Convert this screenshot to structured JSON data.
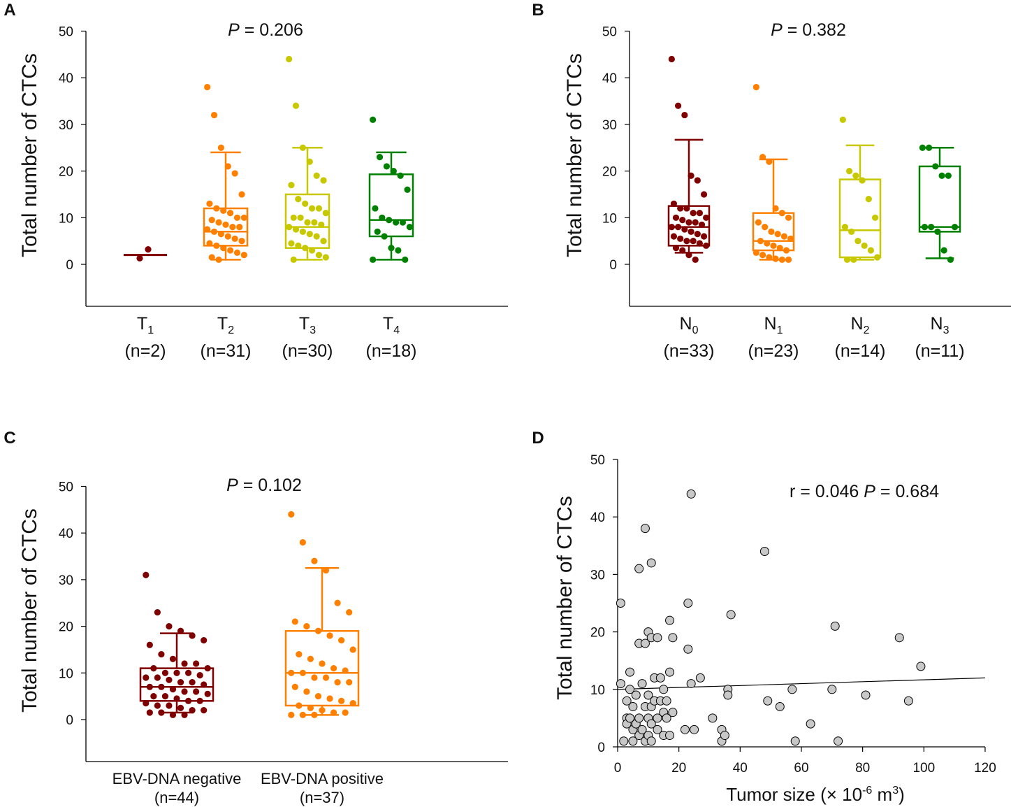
{
  "chart_data": [
    {
      "panel": "A",
      "type": "box",
      "ylabel": "Total number of CTCs",
      "ylim": [
        -10,
        50
      ],
      "yticks": [
        0,
        10,
        20,
        30,
        40,
        50
      ],
      "annotation": {
        "italic": "P",
        "text": " = 0.206"
      },
      "categories": [
        {
          "name": "T",
          "sub": "1",
          "n": "(n=2)",
          "color": "#7f0000",
          "q1": 2,
          "median": 2,
          "q3": 2,
          "whisker_low": 2,
          "whisker_high": 2,
          "points": [
            1.3,
            3.2
          ]
        },
        {
          "name": "T",
          "sub": "2",
          "n": "(n=31)",
          "color": "#ff8000",
          "q1": 4,
          "median": 7,
          "q3": 12,
          "whisker_low": 1,
          "whisker_high": 24,
          "points": [
            38,
            32,
            25,
            21,
            19.5,
            15,
            13,
            12,
            11.5,
            11,
            10,
            10,
            9.5,
            9,
            8.5,
            8,
            8,
            7.5,
            7,
            6.5,
            6,
            5.5,
            5,
            4.5,
            4,
            3.5,
            3,
            2.5,
            2,
            1.5,
            1
          ]
        },
        {
          "name": "T",
          "sub": "3",
          "n": "(n=30)",
          "color": "#c8c800",
          "q1": 3.5,
          "median": 8,
          "q3": 15,
          "whisker_low": 1,
          "whisker_high": 25,
          "points": [
            44,
            34,
            25,
            22,
            19,
            18,
            17,
            14,
            13,
            12,
            12,
            11,
            10,
            10,
            9,
            9,
            8.5,
            8,
            7.5,
            7,
            6.5,
            6,
            5,
            4.5,
            4,
            3.5,
            3,
            2,
            1.5,
            1
          ]
        },
        {
          "name": "T",
          "sub": "4",
          "n": "(n=18)",
          "color": "#008000",
          "q1": 6,
          "median": 9.5,
          "q3": 19.3,
          "whisker_low": 1,
          "whisker_high": 24,
          "points": [
            31,
            23,
            21,
            20,
            19,
            16,
            12,
            10,
            9.5,
            9,
            9,
            8,
            7,
            6,
            3.5,
            3,
            1,
            1
          ]
        }
      ]
    },
    {
      "panel": "B",
      "type": "box",
      "ylabel": "Total number of CTCs",
      "ylim": [
        -10,
        50
      ],
      "yticks": [
        0,
        10,
        20,
        30,
        40,
        50
      ],
      "annotation": {
        "italic": "P",
        "text": " = 0.382"
      },
      "categories": [
        {
          "name": "N",
          "sub": "0",
          "n": "(n=33)",
          "color": "#7f0000",
          "q1": 4,
          "median": 8,
          "q3": 12.5,
          "whisker_low": 2.5,
          "whisker_high": 26.7,
          "points": [
            44,
            34,
            32,
            19,
            18,
            15,
            13,
            12,
            12,
            11,
            11,
            10,
            10,
            9.5,
            9,
            9,
            8.5,
            8,
            8,
            7.5,
            7,
            6.5,
            6,
            6,
            5.5,
            5,
            5,
            4.5,
            4,
            3.5,
            3,
            2,
            1
          ]
        },
        {
          "name": "N",
          "sub": "1",
          "n": "(n=23)",
          "color": "#ff8000",
          "q1": 3,
          "median": 5,
          "q3": 11,
          "whisker_low": 1,
          "whisker_high": 22.5,
          "points": [
            38,
            23,
            22,
            12,
            11,
            10,
            9,
            8,
            7,
            6.5,
            6,
            5.5,
            5,
            4.5,
            4,
            3.5,
            3,
            2.5,
            2,
            1.5,
            1.2,
            1,
            1
          ]
        },
        {
          "name": "N",
          "sub": "2",
          "n": "(n=14)",
          "color": "#c8c800",
          "q1": 1.5,
          "median": 7.3,
          "q3": 18.2,
          "whisker_low": 1,
          "whisker_high": 25.5,
          "points": [
            31,
            20,
            19,
            18,
            14,
            10,
            8,
            7,
            5,
            4,
            3,
            1.5,
            1,
            1
          ]
        },
        {
          "name": "N",
          "sub": "3",
          "n": "(n=11)",
          "color": "#008000",
          "q1": 7,
          "median": 8,
          "q3": 21,
          "whisker_low": 1.3,
          "whisker_high": 25,
          "points": [
            25,
            25,
            21,
            19,
            19,
            8,
            8,
            8,
            7,
            3,
            1
          ]
        }
      ]
    },
    {
      "panel": "C",
      "type": "box",
      "ylabel": "Total number of CTCs",
      "ylim": [
        -10,
        50
      ],
      "yticks": [
        0,
        10,
        20,
        30,
        40,
        50
      ],
      "annotation": {
        "italic": "P",
        "text": " = 0.102"
      },
      "categories": [
        {
          "name": "EBV-DNA negative",
          "sub": "",
          "n": "(n=44)",
          "color": "#7f0000",
          "q1": 4,
          "median": 7,
          "q3": 11,
          "whisker_low": 1.5,
          "whisker_high": 18.5,
          "points": [
            31,
            23,
            20,
            19,
            18,
            17,
            16,
            14,
            13,
            12,
            12,
            11,
            11,
            10,
            10,
            10,
            9.5,
            9,
            9,
            8.5,
            8,
            8,
            7.5,
            7,
            7,
            6.5,
            6,
            6,
            5.5,
            5,
            5,
            4.5,
            4,
            4,
            3.5,
            3,
            3,
            2.5,
            2,
            2,
            1.5,
            1.5,
            1,
            1
          ]
        },
        {
          "name": "EBV-DNA positive",
          "sub": "",
          "n": "(n=37)",
          "color": "#ff8000",
          "q1": 3,
          "median": 10,
          "q3": 19,
          "whisker_low": 1,
          "whisker_high": 32.5,
          "points": [
            44,
            38,
            34,
            32,
            25,
            23,
            21,
            20,
            19,
            18,
            17,
            15,
            14,
            13,
            12,
            11,
            10.5,
            10,
            10,
            9,
            9,
            8,
            8,
            7,
            6,
            5,
            4.5,
            4,
            3.5,
            3,
            2.5,
            2,
            1.5,
            1.5,
            1,
            1,
            1
          ]
        }
      ]
    },
    {
      "panel": "D",
      "type": "scatter",
      "ylabel": "Total number of CTCs",
      "xlabel": {
        "text": "Tumor size (× 10",
        "sup": "-6",
        "mid": " m",
        "sup2": "3",
        "end": ")"
      },
      "annotation": {
        "prefix": "r = 0.046 ",
        "italic": "P",
        "text": " = 0.684"
      },
      "xlim": [
        0,
        120
      ],
      "ylim": [
        0,
        50
      ],
      "xticks": [
        0,
        20,
        40,
        60,
        80,
        100,
        120
      ],
      "yticks": [
        0,
        10,
        20,
        30,
        40,
        50
      ],
      "point_color": "#c8c8c8",
      "regression": {
        "x": [
          0,
          120
        ],
        "y": [
          10,
          12
        ]
      },
      "points": [
        [
          1,
          25
        ],
        [
          1,
          11
        ],
        [
          2,
          1
        ],
        [
          3,
          8
        ],
        [
          3,
          5
        ],
        [
          3,
          4
        ],
        [
          4,
          13
        ],
        [
          4,
          10
        ],
        [
          4,
          5
        ],
        [
          5,
          3
        ],
        [
          5,
          1
        ],
        [
          5,
          7
        ],
        [
          6,
          9
        ],
        [
          6,
          4
        ],
        [
          7,
          31
        ],
        [
          7,
          18
        ],
        [
          7,
          2
        ],
        [
          7,
          5
        ],
        [
          8,
          11
        ],
        [
          8,
          3
        ],
        [
          9,
          38
        ],
        [
          9,
          18
        ],
        [
          9,
          7
        ],
        [
          9,
          1
        ],
        [
          10,
          20
        ],
        [
          10,
          9
        ],
        [
          10,
          5
        ],
        [
          10,
          2
        ],
        [
          11,
          32
        ],
        [
          11,
          19
        ],
        [
          11,
          7
        ],
        [
          11,
          4
        ],
        [
          11,
          1
        ],
        [
          12,
          12
        ],
        [
          12,
          8
        ],
        [
          13,
          19
        ],
        [
          13,
          5
        ],
        [
          13,
          3
        ],
        [
          14,
          12
        ],
        [
          14,
          8
        ],
        [
          15,
          10
        ],
        [
          15,
          6
        ],
        [
          15,
          2
        ],
        [
          16,
          8
        ],
        [
          16,
          5
        ],
        [
          17,
          22
        ],
        [
          17,
          13
        ],
        [
          17,
          2
        ],
        [
          18,
          6
        ],
        [
          18,
          19
        ],
        [
          22,
          3
        ],
        [
          23,
          25
        ],
        [
          23,
          17
        ],
        [
          24,
          44
        ],
        [
          24,
          11
        ],
        [
          25,
          3
        ],
        [
          27,
          12
        ],
        [
          31,
          5
        ],
        [
          34,
          3
        ],
        [
          34,
          1
        ],
        [
          35,
          2
        ],
        [
          36,
          10
        ],
        [
          36,
          9
        ],
        [
          37,
          23
        ],
        [
          48,
          34
        ],
        [
          49,
          8
        ],
        [
          53,
          7
        ],
        [
          57,
          10
        ],
        [
          58,
          1
        ],
        [
          63,
          4
        ],
        [
          70,
          10
        ],
        [
          71,
          21
        ],
        [
          72,
          1
        ],
        [
          81,
          9
        ],
        [
          92,
          19
        ],
        [
          95,
          8
        ],
        [
          99,
          14
        ]
      ]
    }
  ]
}
